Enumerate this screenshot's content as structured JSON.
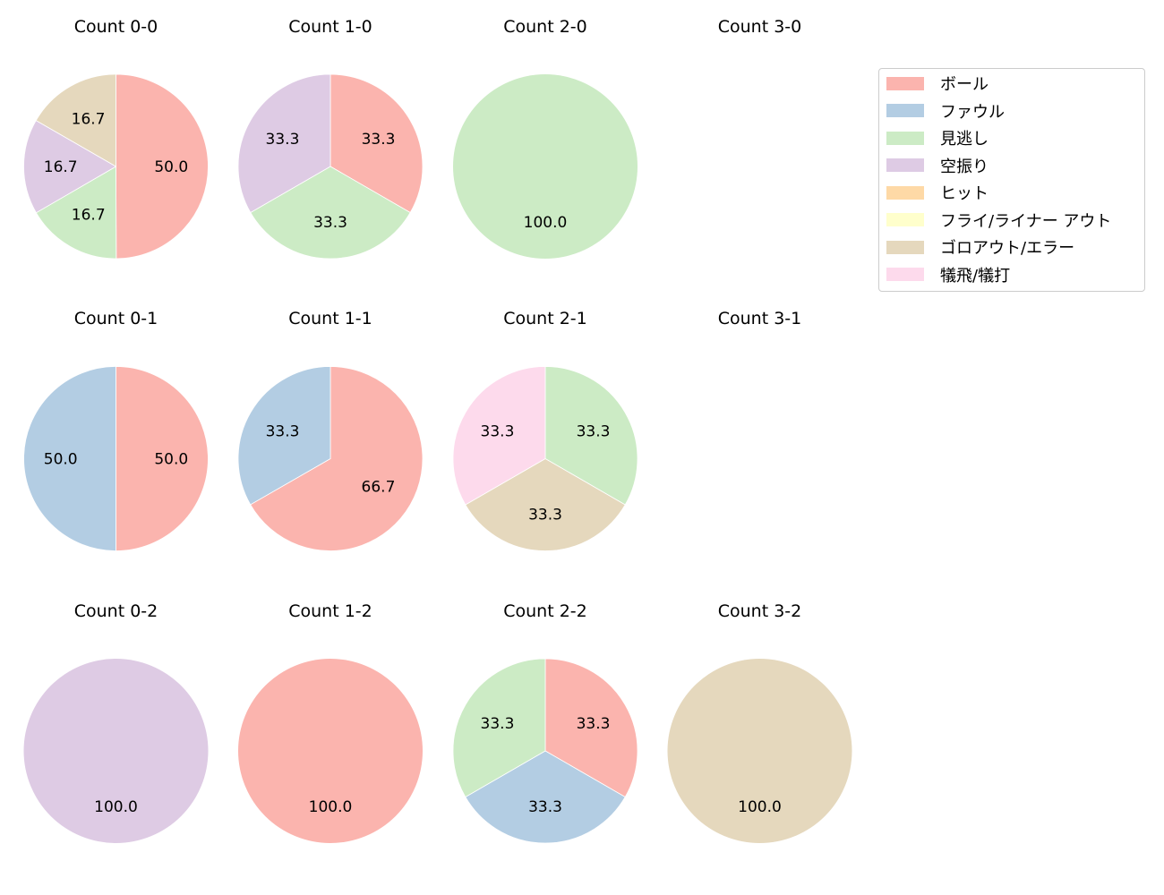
{
  "chart_data": {
    "type": "pie",
    "title": "",
    "legend": {
      "position": "upper right",
      "entries": [
        {
          "label": "ボール",
          "color": "#fbb4ae"
        },
        {
          "label": "ファウル",
          "color": "#b3cde3"
        },
        {
          "label": "見逃し",
          "color": "#ccebc5"
        },
        {
          "label": "空振り",
          "color": "#decbe4"
        },
        {
          "label": "ヒット",
          "color": "#fed9a6"
        },
        {
          "label": "フライ/ライナー アウト",
          "color": "#ffffcc"
        },
        {
          "label": "ゴロアウト/エラー",
          "color": "#e5d8bd"
        },
        {
          "label": "犠飛/犠打",
          "color": "#fddaec"
        }
      ]
    },
    "start_angle": 90,
    "direction": "clockwise",
    "subplots": [
      {
        "title": "Count 0-0",
        "row": 0,
        "col": 0,
        "slices": [
          {
            "category": "ボール",
            "value": 50.0
          },
          {
            "category": "見逃し",
            "value": 16.7
          },
          {
            "category": "空振り",
            "value": 16.7
          },
          {
            "category": "ゴロアウト/エラー",
            "value": 16.7
          }
        ]
      },
      {
        "title": "Count 1-0",
        "row": 0,
        "col": 1,
        "slices": [
          {
            "category": "ボール",
            "value": 33.3
          },
          {
            "category": "見逃し",
            "value": 33.3
          },
          {
            "category": "空振り",
            "value": 33.3
          }
        ]
      },
      {
        "title": "Count 2-0",
        "row": 0,
        "col": 2,
        "slices": [
          {
            "category": "見逃し",
            "value": 100.0
          }
        ]
      },
      {
        "title": "Count 3-0",
        "row": 0,
        "col": 3,
        "slices": []
      },
      {
        "title": "Count 0-1",
        "row": 1,
        "col": 0,
        "slices": [
          {
            "category": "ボール",
            "value": 50.0
          },
          {
            "category": "ファウル",
            "value": 50.0
          }
        ]
      },
      {
        "title": "Count 1-1",
        "row": 1,
        "col": 1,
        "slices": [
          {
            "category": "ボール",
            "value": 66.7
          },
          {
            "category": "ファウル",
            "value": 33.3
          }
        ]
      },
      {
        "title": "Count 2-1",
        "row": 1,
        "col": 2,
        "slices": [
          {
            "category": "見逃し",
            "value": 33.3
          },
          {
            "category": "ゴロアウト/エラー",
            "value": 33.3
          },
          {
            "category": "犠飛/犠打",
            "value": 33.3
          }
        ]
      },
      {
        "title": "Count 3-1",
        "row": 1,
        "col": 3,
        "slices": []
      },
      {
        "title": "Count 0-2",
        "row": 2,
        "col": 0,
        "slices": [
          {
            "category": "空振り",
            "value": 100.0
          }
        ]
      },
      {
        "title": "Count 1-2",
        "row": 2,
        "col": 1,
        "slices": [
          {
            "category": "ボール",
            "value": 100.0
          }
        ]
      },
      {
        "title": "Count 2-2",
        "row": 2,
        "col": 2,
        "slices": [
          {
            "category": "ボール",
            "value": 33.3
          },
          {
            "category": "ファウル",
            "value": 33.3
          },
          {
            "category": "見逃し",
            "value": 33.3
          }
        ]
      },
      {
        "title": "Count 3-2",
        "row": 2,
        "col": 3,
        "slices": [
          {
            "category": "ゴロアウト/エラー",
            "value": 100.0
          }
        ]
      }
    ]
  }
}
